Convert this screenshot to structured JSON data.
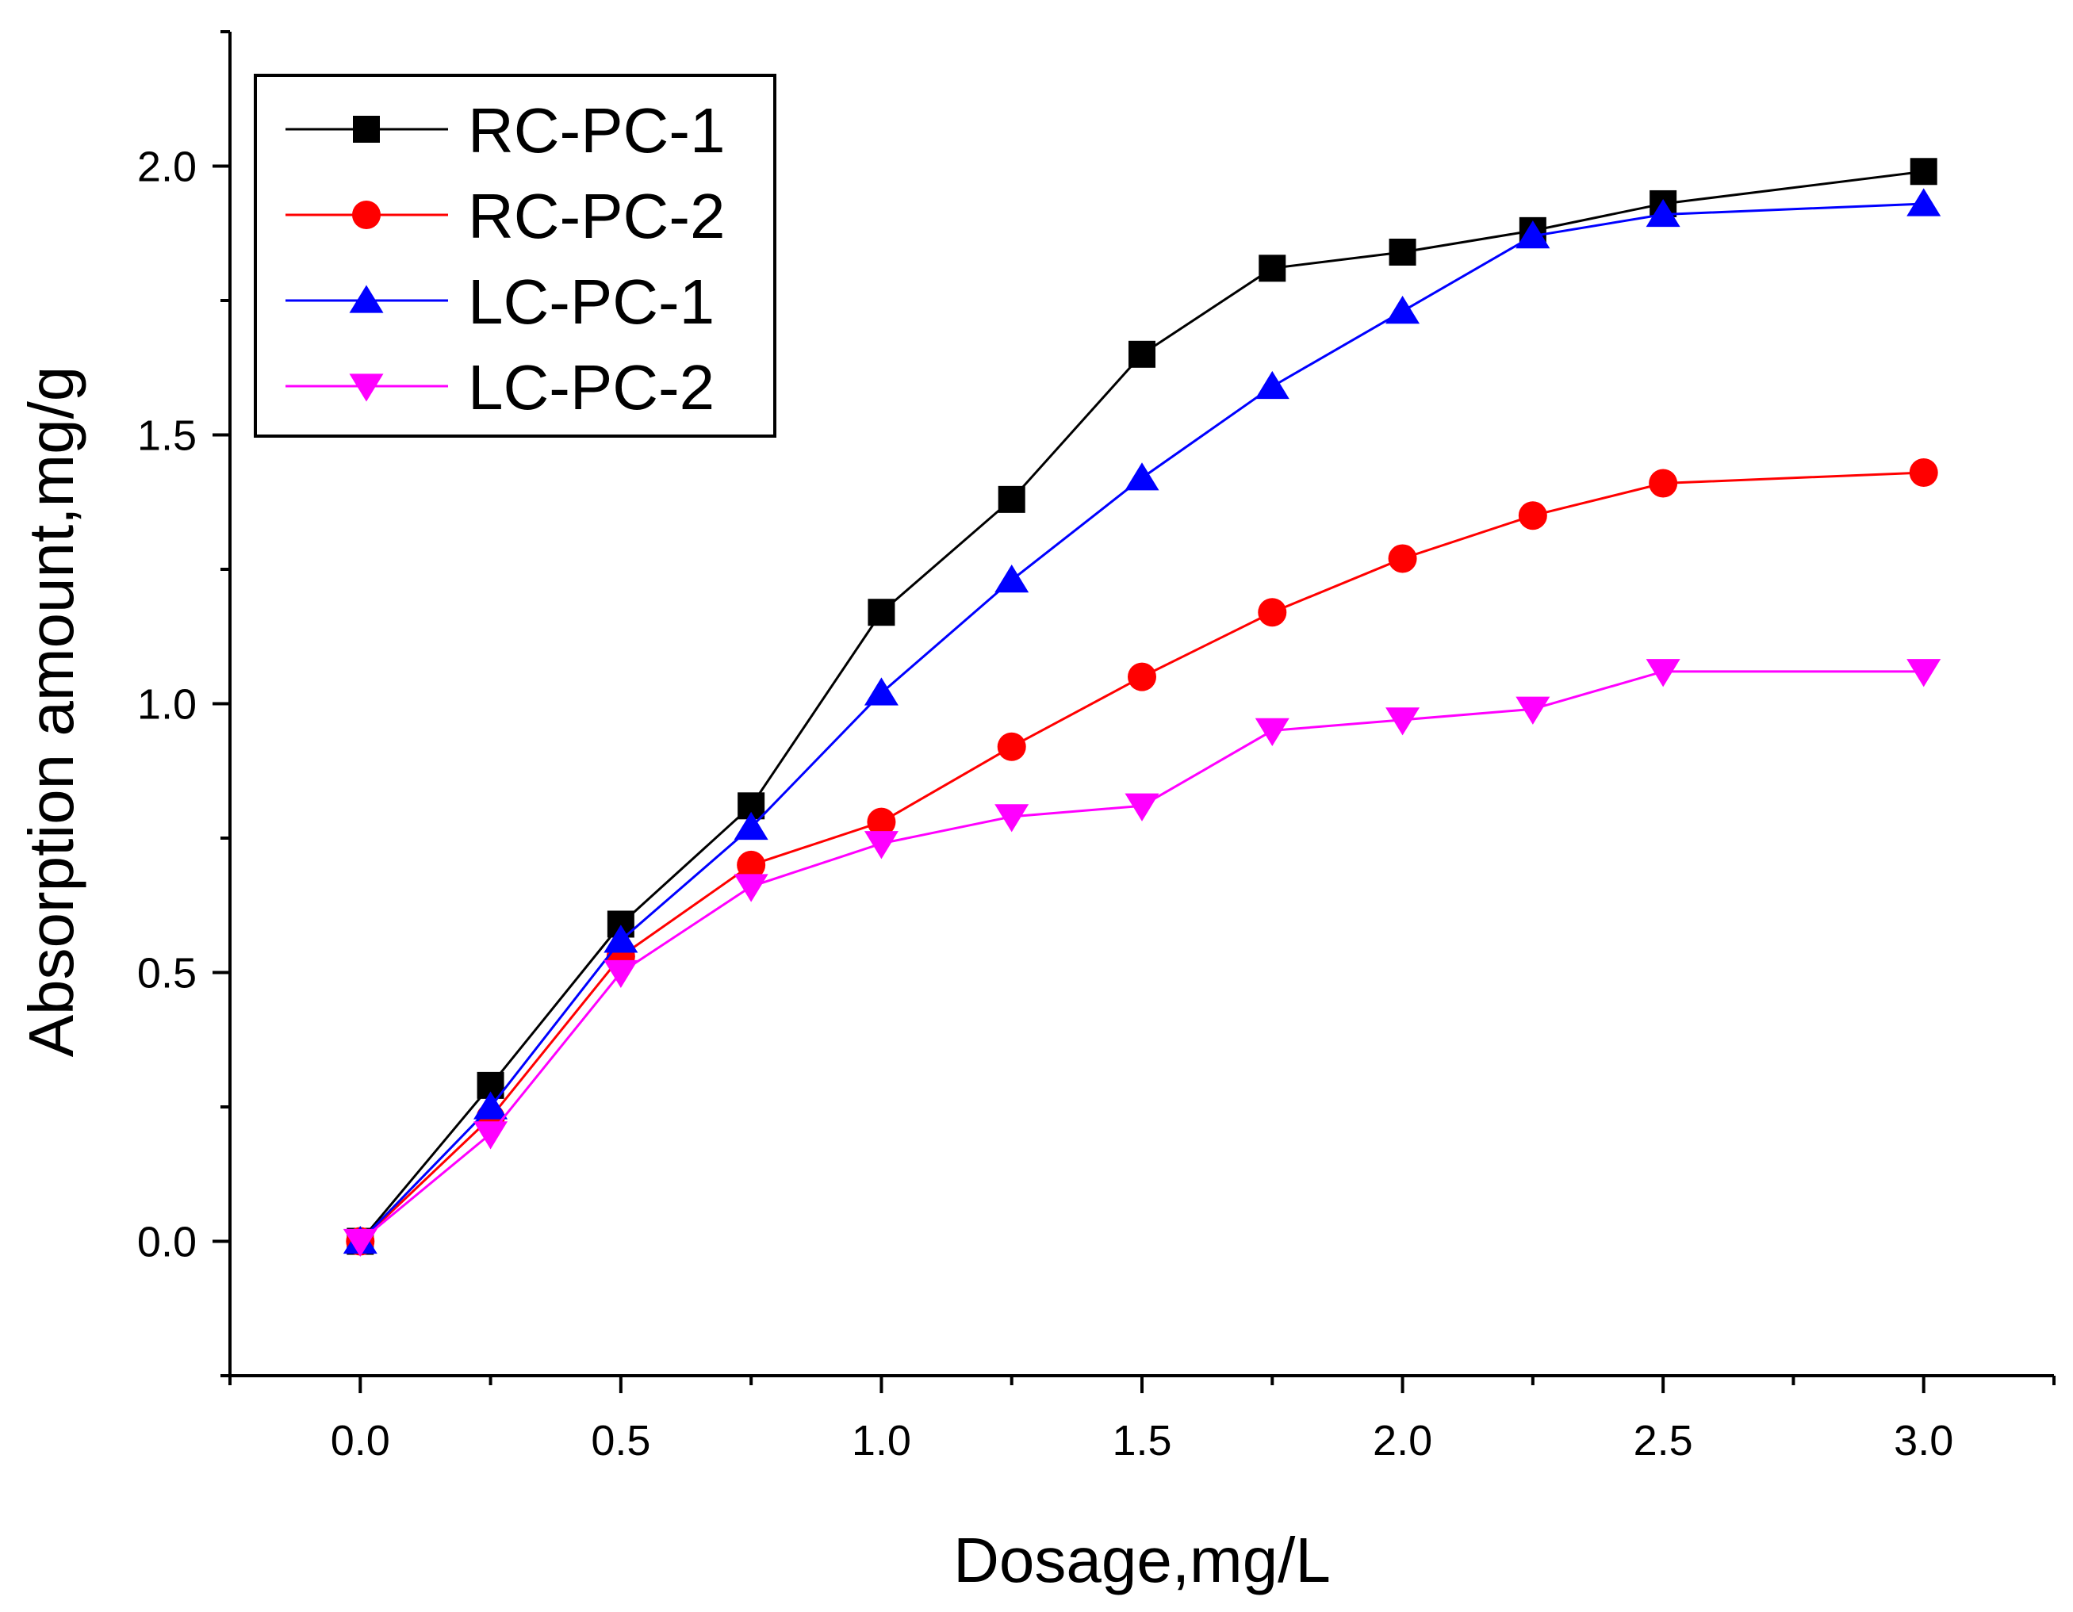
{
  "chart_data": {
    "type": "line",
    "title": "",
    "xlabel": "Dosage,mg/L",
    "ylabel": "Absorption amount,mg/g",
    "xlim": [
      -0.25,
      3.25
    ],
    "ylim": [
      -0.25,
      2.25
    ],
    "xticks": [
      0.0,
      0.5,
      1.0,
      1.5,
      2.0,
      2.5,
      3.0
    ],
    "xtick_labels": [
      "0.0",
      "0.5",
      "1.0",
      "1.5",
      "2.0",
      "2.5",
      "3.0"
    ],
    "yticks": [
      0.0,
      0.5,
      1.0,
      1.5,
      2.0
    ],
    "ytick_labels": [
      "0.0",
      "0.5",
      "1.0",
      "1.5",
      "2.0"
    ],
    "legend_position": "top-left",
    "x": [
      0,
      0.25,
      0.5,
      0.75,
      1.0,
      1.25,
      1.5,
      1.75,
      2.0,
      2.25,
      2.5,
      3.0
    ],
    "series": [
      {
        "name": "RC-PC-1",
        "color": "#000000",
        "marker": "square",
        "values": [
          0.0,
          0.29,
          0.59,
          0.81,
          1.17,
          1.38,
          1.65,
          1.81,
          1.84,
          1.88,
          1.93,
          1.99
        ]
      },
      {
        "name": "RC-PC-2",
        "color": "#ff0000",
        "marker": "circle",
        "values": [
          0.0,
          0.23,
          0.53,
          0.7,
          0.78,
          0.92,
          1.05,
          1.17,
          1.27,
          1.35,
          1.41,
          1.43
        ]
      },
      {
        "name": "LC-PC-1",
        "color": "#0000ff",
        "marker": "triangle-up",
        "values": [
          0.0,
          0.25,
          0.56,
          0.77,
          1.02,
          1.23,
          1.42,
          1.59,
          1.73,
          1.87,
          1.91,
          1.93
        ]
      },
      {
        "name": "LC-PC-2",
        "color": "#ff00ff",
        "marker": "triangle-down",
        "values": [
          0.0,
          0.2,
          0.5,
          0.66,
          0.74,
          0.79,
          0.81,
          0.95,
          0.97,
          0.99,
          1.06,
          1.06
        ]
      }
    ]
  }
}
